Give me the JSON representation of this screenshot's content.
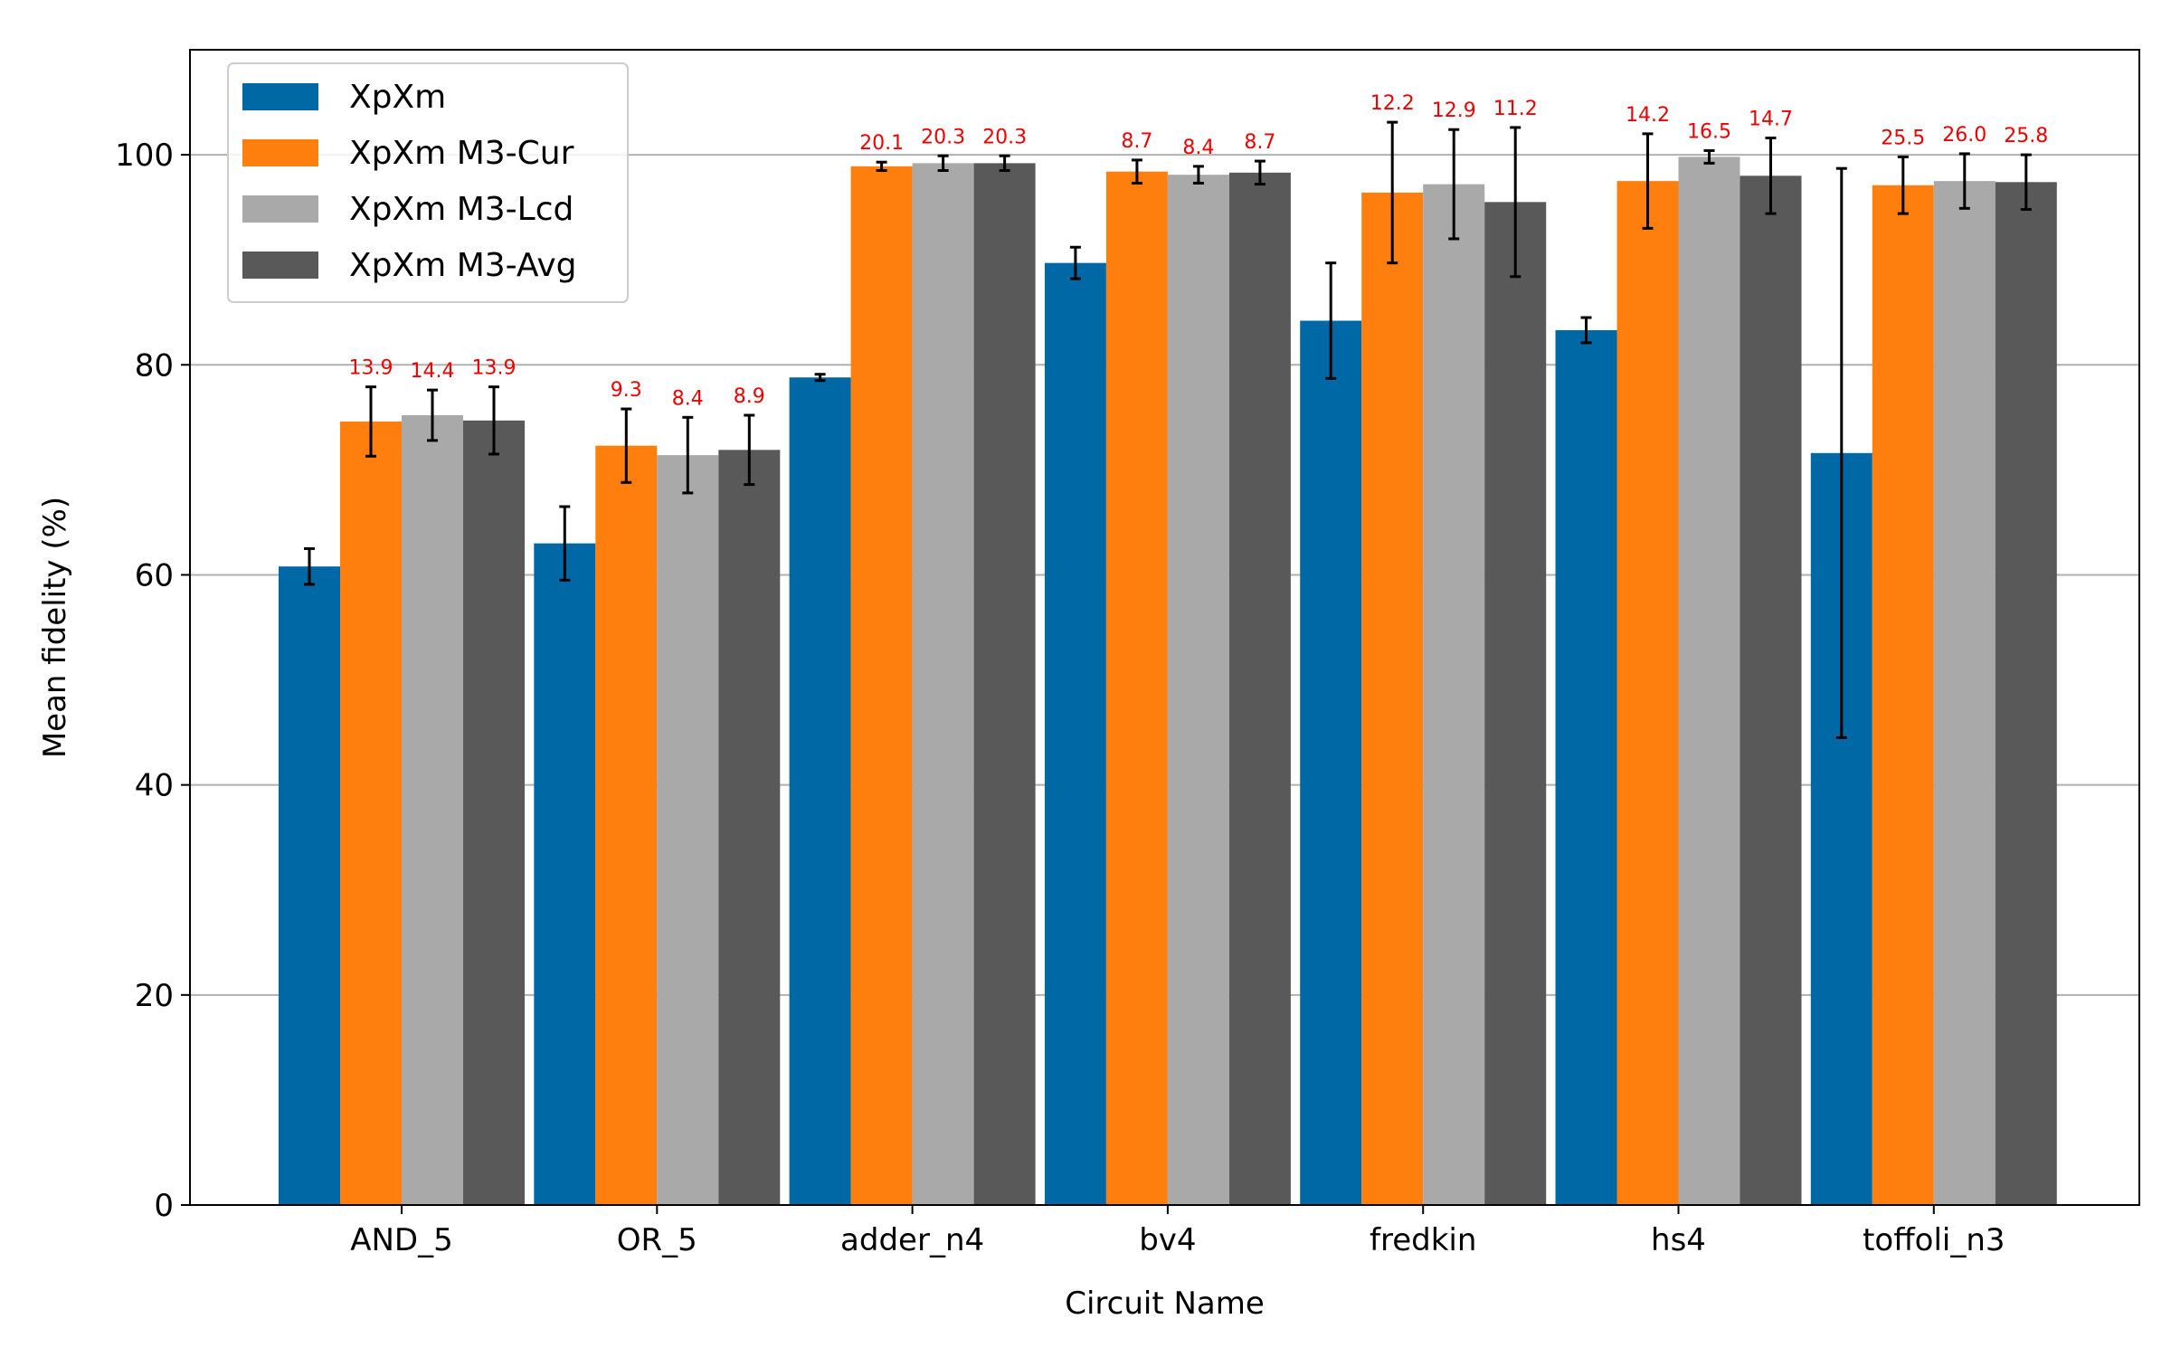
{
  "chart_data": {
    "type": "bar",
    "xlabel": "Circuit Name",
    "ylabel": "Mean fidelity (%)",
    "ylim": [
      0,
      110
    ],
    "yticks": [
      0,
      20,
      40,
      60,
      80,
      100
    ],
    "grid": "horizontal",
    "legend_position": "top-left",
    "categories": [
      "AND_5",
      "OR_5",
      "adder_n4",
      "bv4",
      "fredkin",
      "hs4",
      "toffoli_n3"
    ],
    "series": [
      {
        "name": "XpXm",
        "color": "#0068a5",
        "values": [
          60.8,
          63.0,
          78.8,
          89.7,
          84.2,
          83.3,
          71.6
        ],
        "errors": [
          1.7,
          3.5,
          0.3,
          1.5,
          5.5,
          1.2,
          27.1
        ],
        "labels": []
      },
      {
        "name": "XpXm M3-Cur",
        "color": "#ff7f0e",
        "values": [
          74.6,
          72.3,
          98.9,
          98.4,
          96.4,
          97.5,
          97.1
        ],
        "errors": [
          3.3,
          3.5,
          0.4,
          1.1,
          6.7,
          4.5,
          2.7
        ],
        "labels": [
          "13.9",
          "9.3",
          "20.1",
          "8.7",
          "12.2",
          "14.2",
          "25.5"
        ]
      },
      {
        "name": "XpXm M3-Lcd",
        "color": "#a9a9a9",
        "values": [
          75.2,
          71.4,
          99.2,
          98.1,
          97.2,
          99.8,
          97.5
        ],
        "errors": [
          2.4,
          3.6,
          0.7,
          0.8,
          5.2,
          0.6,
          2.6
        ],
        "labels": [
          "14.4",
          "8.4",
          "20.3",
          "8.4",
          "12.9",
          "16.5",
          "26.0"
        ]
      },
      {
        "name": "XpXm M3-Avg",
        "color": "#595959",
        "values": [
          74.7,
          71.9,
          99.2,
          98.3,
          95.5,
          98.0,
          97.4
        ],
        "errors": [
          3.2,
          3.3,
          0.7,
          1.1,
          7.1,
          3.6,
          2.6
        ],
        "labels": [
          "13.9",
          "8.9",
          "20.3",
          "8.7",
          "11.2",
          "14.7",
          "25.8"
        ]
      }
    ],
    "label_color": "#ee0000"
  }
}
